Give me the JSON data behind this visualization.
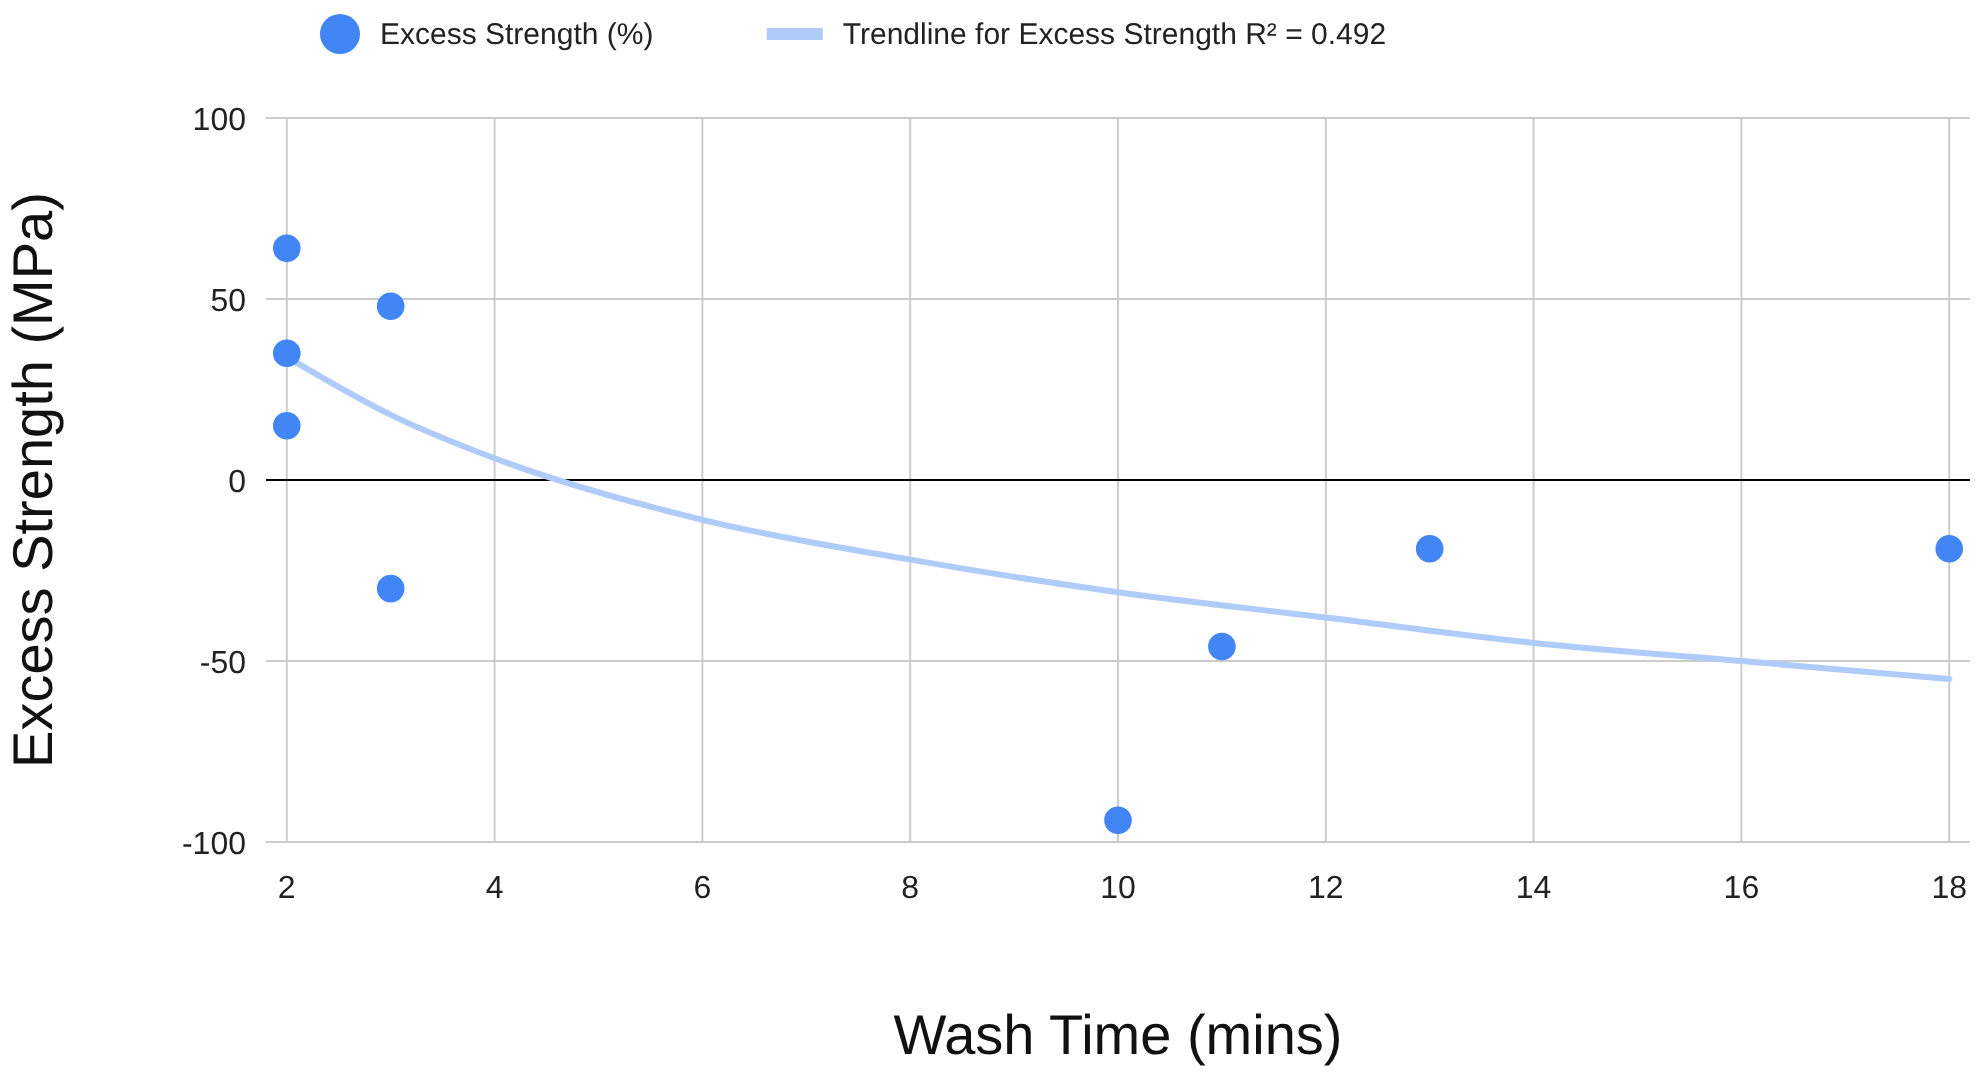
{
  "chart_data": {
    "type": "scatter",
    "xlabel": "Wash Time (mins)",
    "ylabel": "Excess Strength (MPa)",
    "xlim": [
      1.8,
      18.2
    ],
    "xticks": [
      2,
      4,
      6,
      8,
      10,
      12,
      14,
      16,
      18
    ],
    "ylim": [
      -100,
      100
    ],
    "yticks": [
      -100,
      -50,
      0,
      50,
      100
    ],
    "grid": true,
    "legend": "top",
    "marker": "circle",
    "ref_lines": [
      {
        "axis": "y",
        "value": 0,
        "color": "#000000"
      }
    ],
    "series": [
      {
        "name": "Excess Strength (%)",
        "color": "#4285f4",
        "x": [
          2,
          2,
          2,
          3,
          3,
          10,
          11,
          13,
          18
        ],
        "values": [
          64,
          35,
          15,
          48,
          -30,
          -94,
          -46,
          -19,
          -19
        ]
      },
      {
        "name": "Trendline for Excess Strength R² = 0.492",
        "type": "line",
        "color": "#aecbfa",
        "line_style": "solid",
        "marker": "none",
        "x": [
          2,
          3,
          4,
          6,
          8,
          10,
          12,
          14,
          16,
          18
        ],
        "values": [
          34,
          18,
          6,
          -11,
          -22,
          -31,
          -38,
          -45,
          -50,
          -55
        ]
      }
    ]
  }
}
